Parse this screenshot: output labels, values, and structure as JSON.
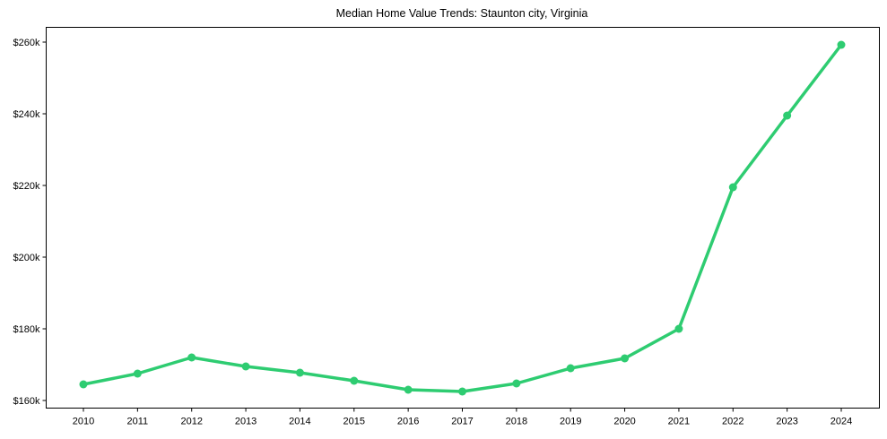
{
  "chart_data": {
    "type": "line",
    "title": "Median Home Value Trends: Staunton city, Virginia",
    "xlabel": "",
    "ylabel": "",
    "x": [
      2010,
      2011,
      2012,
      2013,
      2014,
      2015,
      2016,
      2017,
      2018,
      2019,
      2020,
      2021,
      2022,
      2023,
      2024
    ],
    "series": [
      {
        "name": "Median Home Value",
        "color": "#2ecc71",
        "values": [
          164500,
          167500,
          172000,
          169500,
          167750,
          165500,
          163000,
          162500,
          164750,
          169000,
          171750,
          180000,
          219500,
          239500,
          259250
        ]
      }
    ],
    "y_ticks": [
      160000,
      180000,
      200000,
      220000,
      240000,
      260000
    ],
    "y_tick_labels": [
      "$160k",
      "$180k",
      "$200k",
      "$220k",
      "$240k",
      "$260k"
    ],
    "x_tick_labels": [
      "2010",
      "2011",
      "2012",
      "2013",
      "2014",
      "2015",
      "2016",
      "2017",
      "2018",
      "2019",
      "2020",
      "2021",
      "2022",
      "2023",
      "2024"
    ],
    "ylim": [
      157750,
      264250
    ],
    "grid": false,
    "legend": null
  }
}
